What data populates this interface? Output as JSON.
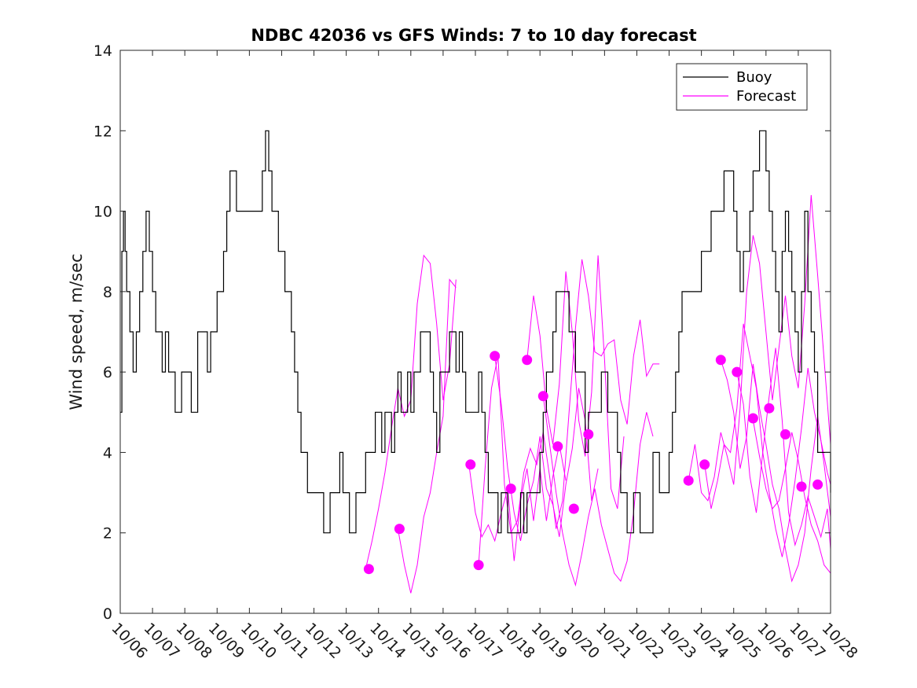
{
  "chart_data": {
    "type": "line",
    "title": "NDBC 42036 vs GFS Winds: 7 to 10 day forecast",
    "ylabel": "Wind speed, m/sec",
    "xlabel": "",
    "x_unit": "day index from 10/06 (0 = 10/06 00:00)",
    "xlim": [
      0,
      22
    ],
    "ylim": [
      0,
      14
    ],
    "yticks": [
      0,
      2,
      4,
      6,
      8,
      10,
      12,
      14
    ],
    "xticks": [
      0,
      1,
      2,
      3,
      4,
      5,
      6,
      7,
      8,
      9,
      10,
      11,
      12,
      13,
      14,
      15,
      16,
      17,
      18,
      19,
      20,
      21,
      22
    ],
    "xtick_labels": [
      "10/06",
      "10/07",
      "10/08",
      "10/09",
      "10/10",
      "10/11",
      "10/12",
      "10/13",
      "10/14",
      "10/15",
      "10/16",
      "10/17",
      "10/18",
      "10/19",
      "10/20",
      "10/21",
      "10/22",
      "10/23",
      "10/24",
      "10/25",
      "10/26",
      "10/27",
      "10/28"
    ],
    "legend": {
      "position": "top-right",
      "entries": [
        "Buoy",
        "Forecast"
      ]
    },
    "colors": {
      "buoy": "#000000",
      "forecast": "#ff00ff",
      "markers": "#ff00ff"
    },
    "series": [
      {
        "name": "Buoy",
        "x": [
          0.0,
          0.05,
          0.1,
          0.15,
          0.2,
          0.3,
          0.4,
          0.5,
          0.6,
          0.7,
          0.8,
          0.9,
          1.0,
          1.1,
          1.2,
          1.3,
          1.4,
          1.5,
          1.6,
          1.7,
          1.8,
          1.9,
          2.0,
          2.1,
          2.2,
          2.3,
          2.4,
          2.5,
          2.6,
          2.7,
          2.8,
          2.9,
          3.0,
          3.1,
          3.2,
          3.3,
          3.4,
          3.5,
          3.6,
          3.7,
          4.4,
          4.5,
          4.6,
          4.7,
          4.8,
          4.9,
          5.0,
          5.1,
          5.2,
          5.3,
          5.4,
          5.5,
          5.6,
          5.7,
          5.8,
          5.9,
          6.0,
          6.1,
          6.2,
          6.3,
          6.4,
          6.5,
          6.6,
          6.7,
          6.8,
          6.9,
          7.0,
          7.1,
          7.2,
          7.3,
          7.4,
          7.5,
          7.6,
          7.7,
          7.8,
          7.9,
          8.0,
          8.1,
          8.2,
          8.3,
          8.4,
          8.5,
          8.6,
          8.7,
          8.8,
          8.9,
          9.0,
          9.1,
          9.2,
          9.3,
          9.4,
          9.5,
          9.6,
          9.7,
          9.8,
          9.9,
          10.0,
          10.1,
          10.2,
          10.3,
          10.4,
          10.5,
          10.6,
          10.7,
          10.8,
          10.9,
          11.0,
          11.1,
          11.2,
          11.3,
          11.4,
          11.5,
          11.6,
          11.7,
          11.8,
          11.9,
          12.0,
          12.1,
          12.2,
          12.3,
          12.4,
          12.5,
          12.6,
          12.7,
          12.8,
          12.9,
          13.0,
          13.1,
          13.2,
          13.3,
          13.4,
          13.5,
          13.6,
          13.7,
          13.8,
          13.9,
          14.0,
          14.1,
          14.2,
          14.3,
          14.4,
          14.5,
          14.6,
          14.7,
          14.8,
          14.9,
          15.0,
          15.1,
          15.2,
          15.3,
          15.4,
          15.5,
          15.6,
          15.7,
          15.8,
          15.9,
          16.0,
          16.1,
          16.2,
          16.3,
          16.4,
          16.5,
          16.6,
          16.7,
          16.8,
          16.9,
          17.0,
          17.1,
          17.2,
          17.3,
          17.4,
          17.5,
          17.6,
          17.7,
          17.8,
          17.9,
          18.0,
          18.1,
          18.2,
          18.3,
          18.4,
          18.5,
          18.6,
          18.7,
          18.8,
          18.9,
          19.0,
          19.1,
          19.2,
          19.3,
          19.4,
          19.5,
          19.6,
          19.7,
          19.8,
          19.9,
          20.0,
          20.1,
          20.2,
          20.3,
          20.4,
          20.5,
          20.6,
          20.7,
          20.8,
          20.9,
          21.0,
          21.1,
          21.2,
          21.3,
          21.4,
          21.5,
          21.6,
          21.7,
          21.8,
          21.9,
          22.0
        ],
        "y": [
          5,
          9,
          10,
          9,
          8,
          7,
          6,
          7,
          8,
          9,
          10,
          9,
          8,
          7,
          7,
          6,
          7,
          6,
          6,
          5,
          5,
          6,
          6,
          6,
          5,
          5,
          7,
          7,
          7,
          6,
          7,
          7,
          8,
          8,
          9,
          10,
          11,
          11,
          10,
          10,
          11,
          12,
          11,
          10,
          10,
          9,
          9,
          8,
          8,
          7,
          6,
          5,
          4,
          4,
          3,
          3,
          3,
          3,
          3,
          2,
          2,
          3,
          3,
          3,
          4,
          3,
          3,
          2,
          2,
          3,
          3,
          3,
          4,
          4,
          4,
          5,
          5,
          4,
          5,
          5,
          4,
          5,
          6,
          5,
          5,
          6,
          5,
          6,
          6,
          7,
          7,
          7,
          6,
          5,
          4,
          6,
          6,
          6,
          7,
          7,
          6,
          7,
          6,
          5,
          5,
          5,
          5,
          6,
          5,
          4,
          3,
          3,
          3,
          2,
          3,
          3,
          2,
          2,
          2,
          2,
          3,
          2,
          3,
          3,
          3,
          3,
          4,
          5,
          6,
          6,
          7,
          8,
          8,
          8,
          8,
          7,
          7,
          6,
          6,
          6,
          4,
          5,
          5,
          5,
          5,
          6,
          6,
          5,
          5,
          5,
          4,
          3,
          3,
          2,
          2,
          3,
          3,
          2,
          2,
          2,
          2,
          4,
          4,
          3,
          3,
          3,
          4,
          5,
          6,
          7,
          8,
          8,
          8,
          8,
          8,
          8,
          9,
          9,
          9,
          10,
          10,
          10,
          10,
          11,
          11,
          11,
          10,
          9,
          8,
          9,
          9,
          10,
          11,
          11,
          12,
          12,
          11,
          10,
          9,
          8,
          7,
          9,
          10,
          9,
          8,
          7,
          6,
          8,
          10,
          8,
          7,
          6,
          4,
          4,
          4,
          4,
          3
        ]
      },
      {
        "name": "Forecast",
        "traces": [
          {
            "x": [
              7.6,
              7.8,
              8.0,
              8.2,
              8.4,
              8.6,
              8.8,
              9.0,
              9.2,
              9.4,
              9.6,
              9.8,
              10.0,
              10.2,
              10.4
            ],
            "y": [
              1.1,
              1.8,
              2.6,
              3.5,
              4.6,
              5.6,
              4.9,
              5.3,
              7.7,
              8.9,
              8.7,
              7.2,
              5.3,
              6.2,
              8.3
            ]
          },
          {
            "x": [
              8.6,
              8.8,
              9.0,
              9.2,
              9.4,
              9.6,
              9.8,
              10.0,
              10.2,
              10.4
            ],
            "y": [
              2.1,
              1.2,
              0.5,
              1.2,
              2.4,
              3.0,
              4.0,
              4.9,
              8.3,
              8.1
            ]
          },
          {
            "x": [
              10.8,
              11.0,
              11.2,
              11.4,
              11.6,
              11.8,
              12.0,
              12.2,
              12.4,
              12.6,
              12.8,
              13.0,
              13.2,
              13.4,
              13.6,
              13.8
            ],
            "y": [
              3.7,
              2.5,
              1.9,
              2.2,
              1.8,
              2.5,
              3.1,
              1.3,
              2.8,
              3.6,
              2.3,
              3.6,
              2.3,
              3.4,
              4.2,
              3.3
            ]
          },
          {
            "x": [
              11.1,
              11.3,
              11.5,
              11.7,
              11.9,
              12.1,
              12.3,
              12.5,
              12.7,
              12.9,
              13.1,
              13.3,
              13.5,
              13.7,
              13.9,
              14.1,
              14.3,
              14.5,
              14.7,
              14.9,
              15.1,
              15.3,
              15.5,
              15.7,
              15.9,
              16.1,
              16.3,
              16.5,
              16.7
            ],
            "y": [
              1.2,
              3.6,
              5.6,
              6.4,
              3.2,
              2.0,
              2.3,
              3.5,
              4.1,
              3.7,
              4.5,
              3.4,
              2.1,
              2.8,
              5.0,
              7.1,
              8.8,
              7.9,
              6.5,
              6.4,
              6.7,
              6.8,
              5.3,
              4.7,
              6.4,
              7.3,
              5.9,
              6.2,
              6.2
            ]
          },
          {
            "x": [
              11.6,
              11.8,
              12.0,
              12.2,
              12.4,
              12.6,
              12.8,
              13.0,
              13.2,
              13.4,
              13.6,
              13.8,
              14.0,
              14.2,
              14.4,
              14.6,
              14.8
            ],
            "y": [
              6.4,
              5.2,
              3.6,
              2.5,
              1.8,
              2.7,
              3.3,
              4.4,
              3.1,
              2.7,
              1.9,
              3.2,
              4.1,
              5.6,
              4.8,
              2.8,
              3.6
            ]
          },
          {
            "x": [
              12.6,
              12.8,
              13.0,
              13.2,
              13.4,
              13.6,
              13.8,
              14.0,
              14.2,
              14.4,
              14.6,
              14.8,
              15.0,
              15.2,
              15.4,
              15.6
            ],
            "y": [
              6.3,
              7.9,
              6.9,
              5.1,
              4.2,
              5.7,
              8.5,
              7.0,
              4.8,
              3.9,
              5.5,
              8.9,
              6.3,
              3.1,
              2.6,
              4.4
            ]
          },
          {
            "x": [
              13.1,
              13.3,
              13.5,
              13.7,
              13.9,
              14.1,
              14.3,
              14.5,
              14.7,
              14.9,
              15.1,
              15.3,
              15.5,
              15.7,
              15.9,
              16.1,
              16.3,
              16.5
            ],
            "y": [
              5.4,
              4.2,
              3.0,
              2.0,
              1.2,
              0.7,
              1.5,
              2.4,
              3.1,
              2.2,
              1.6,
              1.0,
              0.8,
              1.3,
              2.5,
              4.2,
              5.0,
              4.4
            ]
          },
          {
            "x": [
              17.6,
              17.8,
              18.0,
              18.2,
              18.4,
              18.6,
              18.8,
              19.0,
              19.2,
              19.4,
              19.6,
              19.8,
              20.0,
              20.2,
              20.4,
              20.6,
              20.8,
              21.0,
              21.2,
              21.4,
              21.6,
              21.8,
              22.0
            ],
            "y": [
              3.3,
              4.2,
              3.0,
              2.8,
              3.4,
              4.5,
              3.9,
              3.2,
              5.1,
              8.0,
              9.4,
              8.7,
              7.0,
              5.3,
              6.6,
              7.9,
              6.4,
              5.6,
              7.7,
              10.4,
              8.4,
              6.3,
              4.2
            ]
          },
          {
            "x": [
              18.1,
              18.3,
              18.5,
              18.7,
              18.9,
              19.1,
              19.3,
              19.5,
              19.7,
              19.9,
              20.1,
              20.3,
              20.5,
              20.7,
              20.9,
              21.1,
              21.3,
              21.5,
              21.7,
              21.9,
              22.0
            ],
            "y": [
              3.7,
              2.6,
              3.3,
              4.2,
              4.0,
              5.1,
              7.2,
              6.4,
              5.6,
              4.0,
              3.0,
              2.1,
              1.4,
              2.2,
              3.3,
              4.6,
              6.1,
              5.0,
              4.3,
              3.5,
              3.2
            ]
          },
          {
            "x": [
              18.6,
              18.8,
              19.0,
              19.2,
              19.4,
              19.6,
              19.8,
              20.0,
              20.2,
              20.4,
              20.6,
              20.8,
              21.0,
              21.2,
              21.4,
              21.6,
              21.8,
              22.0
            ],
            "y": [
              6.3,
              5.8,
              5.0,
              3.6,
              4.4,
              6.2,
              5.1,
              4.2,
              3.2,
              2.6,
              1.6,
              0.8,
              1.2,
              2.0,
              3.6,
              4.9,
              3.7,
              2.4
            ]
          },
          {
            "x": [
              19.1,
              19.3,
              19.5,
              19.7,
              19.9,
              20.1,
              20.3,
              20.5,
              20.7,
              20.9,
              21.1,
              21.3,
              21.5,
              21.7,
              21.9,
              22.0
            ],
            "y": [
              6.0,
              5.2,
              3.4,
              2.5,
              4.0,
              5.4,
              6.6,
              4.8,
              2.5,
              1.7,
              2.2,
              2.9,
              2.4,
              1.9,
              2.6,
              1.6
            ]
          },
          {
            "x": [
              19.6,
              19.8,
              20.0,
              20.2,
              20.4,
              20.6,
              20.8,
              21.0,
              21.2,
              21.4,
              21.6,
              21.8,
              22.0
            ],
            "y": [
              4.8,
              3.9,
              3.1,
              2.6,
              2.8,
              3.6,
              4.5,
              3.8,
              2.9,
              2.2,
              1.8,
              1.2,
              1.0
            ]
          }
        ]
      }
    ],
    "markers": {
      "x": [
        7.7,
        8.65,
        10.85,
        11.1,
        11.6,
        12.1,
        12.6,
        13.1,
        13.55,
        14.05,
        14.5,
        17.6,
        18.1,
        18.6,
        19.1,
        19.6,
        20.1,
        20.6,
        21.1,
        21.6
      ],
      "y": [
        1.1,
        2.1,
        3.7,
        1.2,
        6.4,
        3.1,
        6.3,
        5.4,
        4.15,
        2.6,
        4.45,
        3.3,
        3.7,
        6.3,
        6.0,
        4.85,
        5.1,
        4.45,
        3.15,
        3.2
      ]
    }
  }
}
